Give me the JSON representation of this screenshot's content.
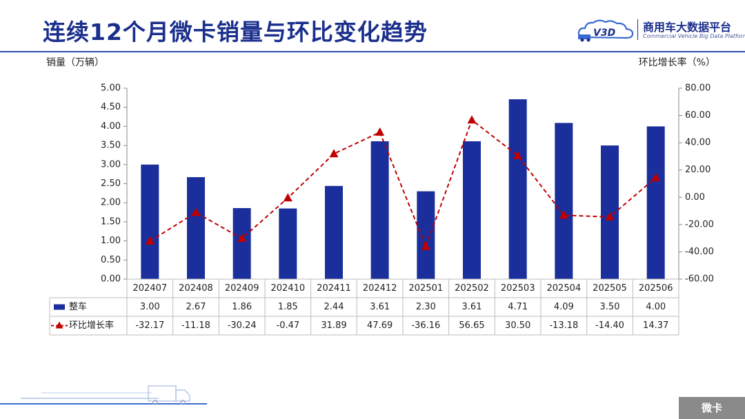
{
  "header": {
    "title": "连续12个月微卡销量与环比变化趋势",
    "logo_badge": "V3D",
    "logo_name": "商用车大数据平台",
    "logo_subtitle": "Commercial Vehicle Big Data Platform"
  },
  "footer": {
    "tag": "微卡"
  },
  "colors": {
    "bar": "#1a2e9c",
    "line": "#c00000",
    "title": "#1a2e8c"
  },
  "chart_data": {
    "type": "bar+line",
    "categories": [
      "202407",
      "202408",
      "202409",
      "202410",
      "202411",
      "202412",
      "202501",
      "202502",
      "202503",
      "202504",
      "202505",
      "202506"
    ],
    "y_left": {
      "label": "销量（万辆）",
      "range": [
        0,
        5
      ],
      "ticks": [
        "0.00",
        "0.50",
        "1.00",
        "1.50",
        "2.00",
        "2.50",
        "3.00",
        "3.50",
        "4.00",
        "4.50",
        "5.00"
      ]
    },
    "y_right": {
      "label": "环比增长率（%）",
      "range": [
        -60,
        80
      ],
      "ticks": [
        "-60.00",
        "-40.00",
        "-20.00",
        "0.00",
        "20.00",
        "40.00",
        "60.00",
        "80.00"
      ]
    },
    "series": [
      {
        "name": "整车",
        "kind": "bar",
        "axis": "left",
        "values": [
          3.0,
          2.67,
          1.86,
          1.85,
          2.44,
          3.61,
          2.3,
          3.61,
          4.71,
          4.09,
          3.5,
          4.0
        ],
        "labels": [
          "3.00",
          "2.67",
          "1.86",
          "1.85",
          "2.44",
          "3.61",
          "2.30",
          "3.61",
          "4.71",
          "4.09",
          "3.50",
          "4.00"
        ]
      },
      {
        "name": "环比增长率",
        "kind": "line",
        "axis": "right",
        "values": [
          -32.17,
          -11.18,
          -30.24,
          -0.47,
          31.89,
          47.69,
          -36.16,
          56.65,
          30.5,
          -13.18,
          -14.4,
          14.37
        ],
        "labels": [
          "-32.17",
          "-11.18",
          "-30.24",
          "-0.47",
          "31.89",
          "47.69",
          "-36.16",
          "56.65",
          "30.50",
          "-13.18",
          "-14.40",
          "14.37"
        ]
      }
    ],
    "grid": false,
    "legend": "data-table-below"
  }
}
